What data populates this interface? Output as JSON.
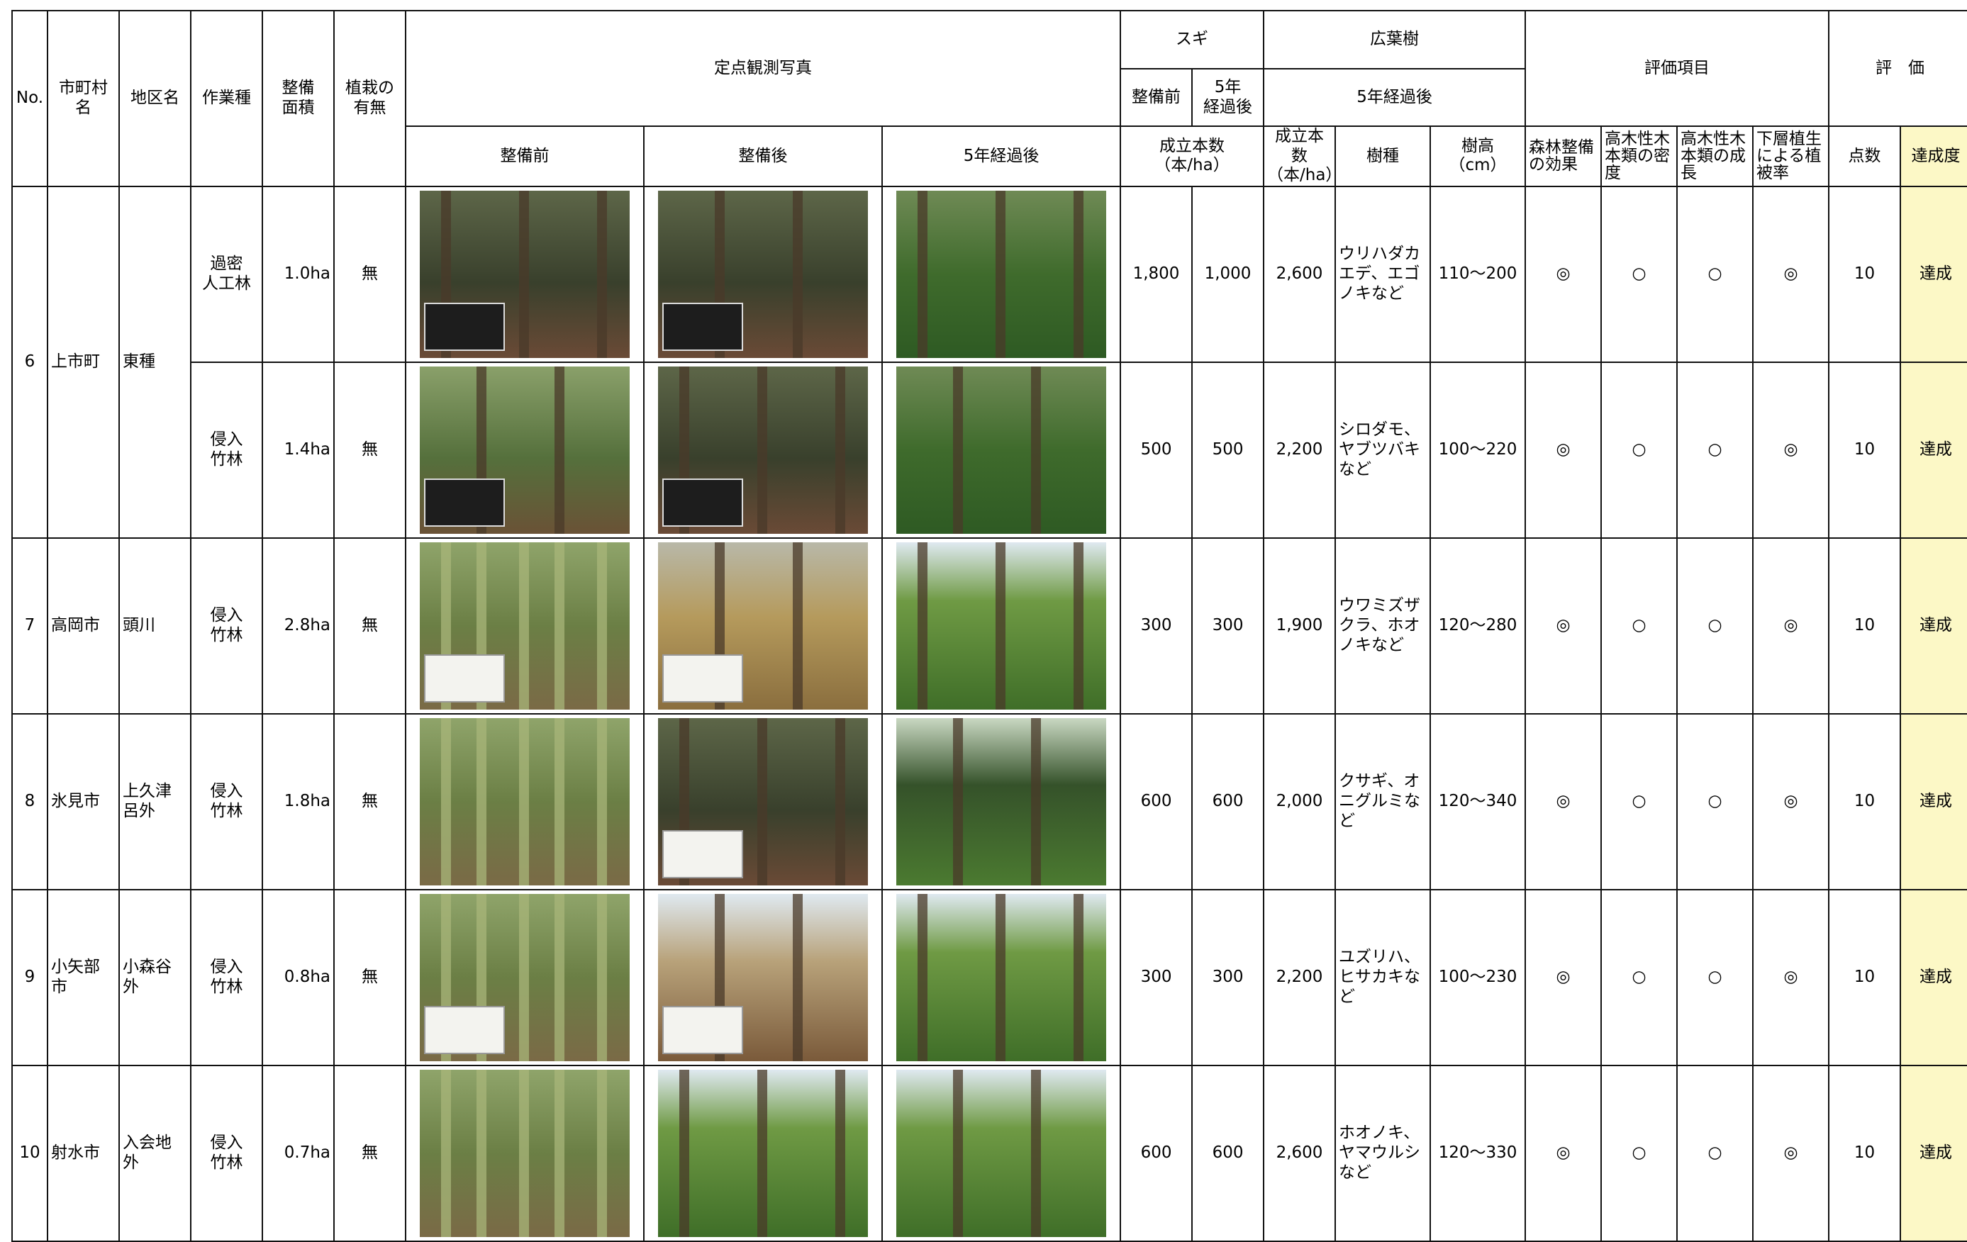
{
  "header": {
    "no": "No.",
    "city": "市町村名",
    "district": "地区名",
    "work_type": "作業種",
    "area": "整備\n面積",
    "planting": "植栽の\n有無",
    "photos": "定点観測写真",
    "before": "整備前",
    "after": "整備後",
    "after5": "5年経過後",
    "sugi": "スギ",
    "broadleaf": "広葉樹",
    "sugi_before": "整備前",
    "sugi_after5": "5年\n経過後",
    "broad_after5": "5年経過後",
    "density1": "成立本数\n（本/ha）",
    "density2": "成立本数\n（本/ha）",
    "species": "樹種",
    "height": "樹高\n（cm）",
    "eval_items": "評価項目",
    "item1": "森林整備\nの効果",
    "item2": "高木性木\n本類の密\n度",
    "item3": "高木性木\n本類の成\n長",
    "item4": "下層植生\nによる植\n被率",
    "evaluation": "評　価",
    "score": "点数",
    "achievement": "達成度"
  },
  "groups": [
    {
      "no": "6",
      "city": "上市町",
      "district": "東種"
    },
    {
      "no": "7",
      "city": "高岡市",
      "district": "頭川"
    },
    {
      "no": "8",
      "city": "氷見市",
      "district": "上久津\n呂外"
    },
    {
      "no": "9",
      "city": "小矢部市",
      "district": "小森谷\n外"
    },
    {
      "no": "10",
      "city": "射水市",
      "district": "入会地\n外"
    }
  ],
  "rows": [
    {
      "work": "過密\n人工林",
      "area": "1.0ha",
      "planting": "無",
      "sugi_before": "1,800",
      "sugi_after": "1,000",
      "broad_density": "2,600",
      "species": "ウリハダカエデ、エゴノキなど",
      "height": "110～200",
      "e1": "◎",
      "e2": "○",
      "e3": "○",
      "e4": "◎",
      "score": "10",
      "achievement": "達成"
    },
    {
      "work": "侵入\n竹林",
      "area": "1.4ha",
      "planting": "無",
      "sugi_before": "500",
      "sugi_after": "500",
      "broad_density": "2,200",
      "species": "シロダモ、ヤブツバキなど",
      "height": "100～220",
      "e1": "◎",
      "e2": "○",
      "e3": "○",
      "e4": "◎",
      "score": "10",
      "achievement": "達成"
    },
    {
      "work": "侵入\n竹林",
      "area": "2.8ha",
      "planting": "無",
      "sugi_before": "300",
      "sugi_after": "300",
      "broad_density": "1,900",
      "species": "ウワミズザクラ、ホオノキなど",
      "height": "120～280",
      "e1": "◎",
      "e2": "○",
      "e3": "○",
      "e4": "◎",
      "score": "10",
      "achievement": "達成"
    },
    {
      "work": "侵入\n竹林",
      "area": "1.8ha",
      "planting": "無",
      "sugi_before": "600",
      "sugi_after": "600",
      "broad_density": "2,000",
      "species": "クサギ、オニグルミなど",
      "height": "120～340",
      "e1": "◎",
      "e2": "○",
      "e3": "○",
      "e4": "◎",
      "score": "10",
      "achievement": "達成"
    },
    {
      "work": "侵入\n竹林",
      "area": "0.8ha",
      "planting": "無",
      "sugi_before": "300",
      "sugi_after": "300",
      "broad_density": "2,200",
      "species": "ユズリハ、ヒサカキなど",
      "height": "100～230",
      "e1": "◎",
      "e2": "○",
      "e3": "○",
      "e4": "◎",
      "score": "10",
      "achievement": "達成"
    },
    {
      "work": "侵入\n竹林",
      "area": "0.7ha",
      "planting": "無",
      "sugi_before": "600",
      "sugi_after": "600",
      "broad_density": "2,600",
      "species": "ホオノキ、ヤマウルシなど",
      "height": "120～330",
      "e1": "◎",
      "e2": "○",
      "e3": "○",
      "e4": "◎",
      "score": "10",
      "achievement": "達成"
    }
  ],
  "photo_colors": {
    "forest_dark": "#3b3a2a",
    "forest_green": "#4d7a32",
    "bamboo": "#8c9a4a",
    "ground": "#7a5a3a",
    "sky": "#dfe9f0",
    "dry": "#b59a5c"
  }
}
